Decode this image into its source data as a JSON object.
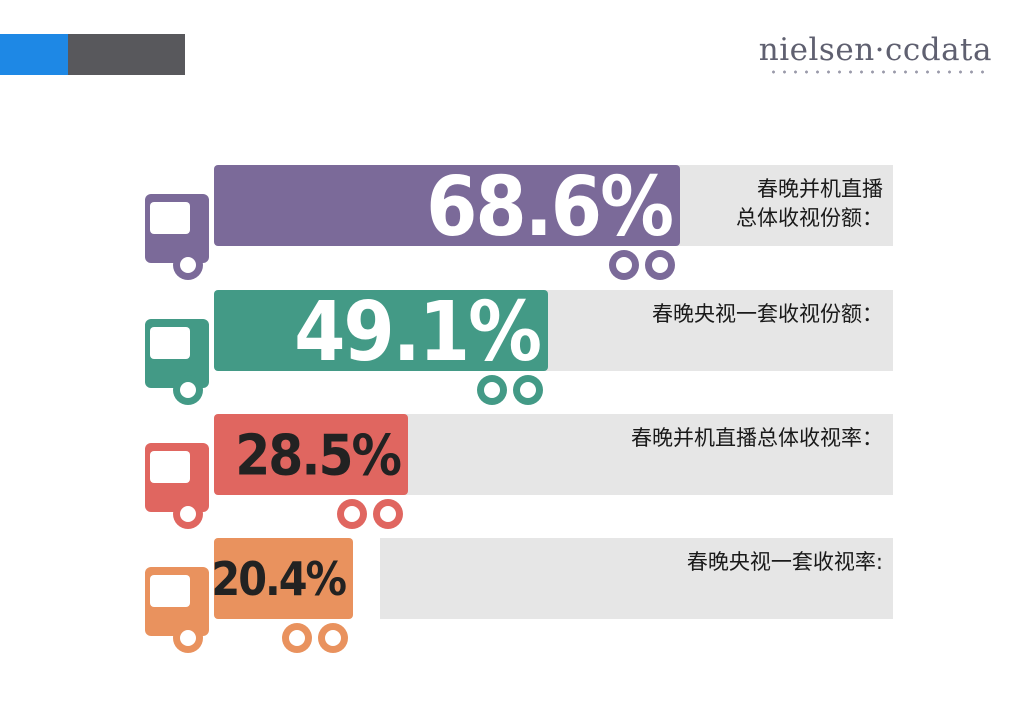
{
  "brand": {
    "logo_text": "nielsen·ccdata",
    "accent_blue": "#1e88e5",
    "accent_gray": "#58585c",
    "logo_n_color": "#3bb5c9"
  },
  "chart_data": {
    "type": "bar",
    "orientation": "horizontal",
    "style": "truck pictogram bars",
    "xlim": [
      0,
      100
    ],
    "unit": "%",
    "title": "",
    "xlabel": "",
    "ylabel": "",
    "grid": false,
    "categories": [
      [
        "春晚并机直播",
        "总体收视份额："
      ],
      [
        "春晚央视一套收视份额："
      ],
      [
        "春晚并机直播总体收视率："
      ],
      [
        "春晚央视一套收视率:"
      ]
    ],
    "values": [
      68.6,
      49.1,
      28.5,
      20.4
    ],
    "value_labels": [
      "68.6%",
      "49.1%",
      "28.5%",
      "20.4%"
    ],
    "colors": [
      "#7b6a99",
      "#439a86",
      "#e06660",
      "#e9925e"
    ],
    "value_label_colors": [
      "#ffffff",
      "#ffffff",
      "#222222",
      "#222222"
    ],
    "track_color": "#e6e6e6"
  }
}
